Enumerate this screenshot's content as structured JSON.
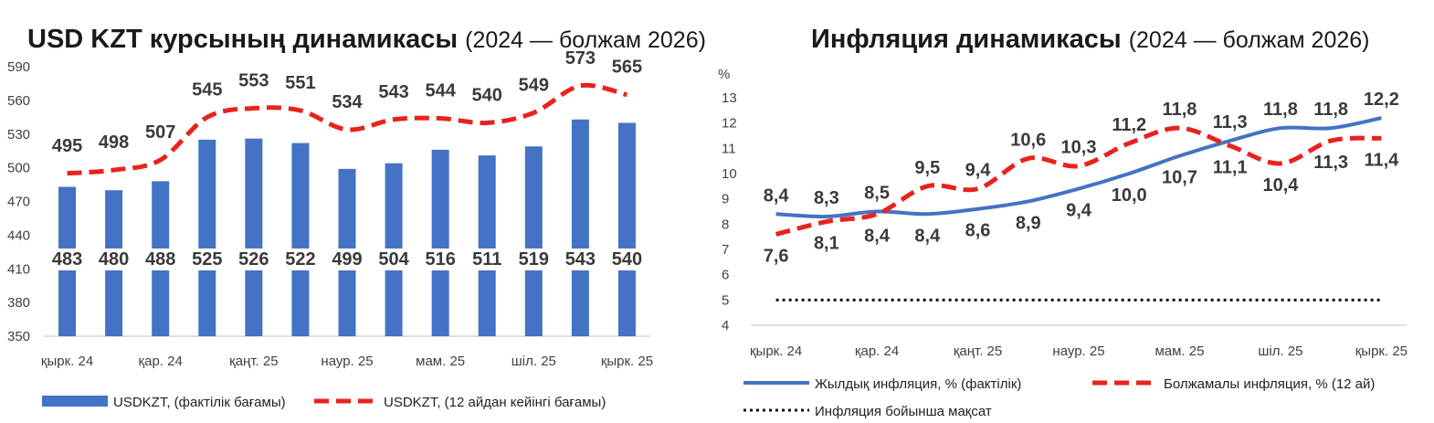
{
  "colors": {
    "bar_blue": "#4472C4",
    "forecast_red": "#E8221C",
    "target_black": "#111111",
    "axis": "#BFBFBF"
  },
  "chart_data": [
    {
      "type": "bar",
      "title": "USD KZT курсының динамикасы",
      "subtitle": "(2024 — болжам 2026)",
      "ylim": [
        350,
        590
      ],
      "yticks": [
        350,
        380,
        410,
        440,
        470,
        500,
        530,
        560,
        590
      ],
      "xtick_labels": [
        "қырк. 24",
        "қар. 24",
        "қаңт. 25",
        "наур. 25",
        "мам. 25",
        "шіл. 25",
        "қырк. 25"
      ],
      "xtick_index": [
        0,
        2,
        4,
        6,
        8,
        10,
        12
      ],
      "n_points": 13,
      "grid": false,
      "legend_position": "bottom",
      "series": [
        {
          "name": "USDKZT, (фактілік бағамы)",
          "kind": "bar",
          "values": [
            483,
            480,
            488,
            525,
            526,
            522,
            499,
            504,
            516,
            511,
            519,
            543,
            540
          ]
        },
        {
          "name": "USDKZT, (12 айдан кейінгі бағамы)",
          "kind": "dashed-line",
          "values": [
            495,
            498,
            507,
            545,
            553,
            551,
            534,
            543,
            544,
            540,
            549,
            573,
            565
          ]
        }
      ]
    },
    {
      "type": "line",
      "title": "Инфляция динамикасы",
      "subtitle": "(2024 — болжам 2026)",
      "ylabel": "%",
      "ylim": [
        4,
        13
      ],
      "yticks": [
        4,
        5,
        6,
        7,
        8,
        9,
        10,
        11,
        12,
        13
      ],
      "xtick_labels": [
        "қырк. 24",
        "қар. 24",
        "қаңт. 25",
        "наур. 25",
        "мам. 25",
        "шіл. 25",
        "қырк. 25"
      ],
      "xtick_index": [
        0,
        2,
        4,
        6,
        8,
        10,
        12
      ],
      "n_points": 13,
      "grid": false,
      "legend_position": "bottom",
      "series": [
        {
          "name": "Жылдық инфляция, % (фактілік)",
          "kind": "solid-line",
          "values": [
            8.4,
            8.3,
            8.5,
            8.4,
            8.6,
            8.9,
            9.4,
            10.0,
            10.7,
            11.3,
            11.8,
            11.8,
            12.2
          ],
          "labels": [
            "8,4",
            "8,3",
            "8,5",
            "8,4",
            "8,6",
            "8,9",
            "9,4",
            "10,0",
            "10,7",
            "11,3",
            "11,8",
            "11,8",
            "12,2"
          ]
        },
        {
          "name": "Болжамалы инфляция, % (12 ай)",
          "kind": "dashed-line",
          "values": [
            7.6,
            8.1,
            8.4,
            9.5,
            9.4,
            10.6,
            10.3,
            11.2,
            11.8,
            11.1,
            10.4,
            11.3,
            11.4
          ],
          "labels": [
            "7,6",
            "8,1",
            "8,4",
            "9,5",
            "9,4",
            "10,6",
            "10,3",
            "11,2",
            "11,8",
            "11,1",
            "10,4",
            "11,3",
            "11,4"
          ]
        },
        {
          "name": "Инфляция бойынша мақсат",
          "kind": "dotted-line",
          "values": [
            5,
            5,
            5,
            5,
            5,
            5,
            5,
            5,
            5,
            5,
            5,
            5,
            5
          ]
        }
      ]
    }
  ]
}
